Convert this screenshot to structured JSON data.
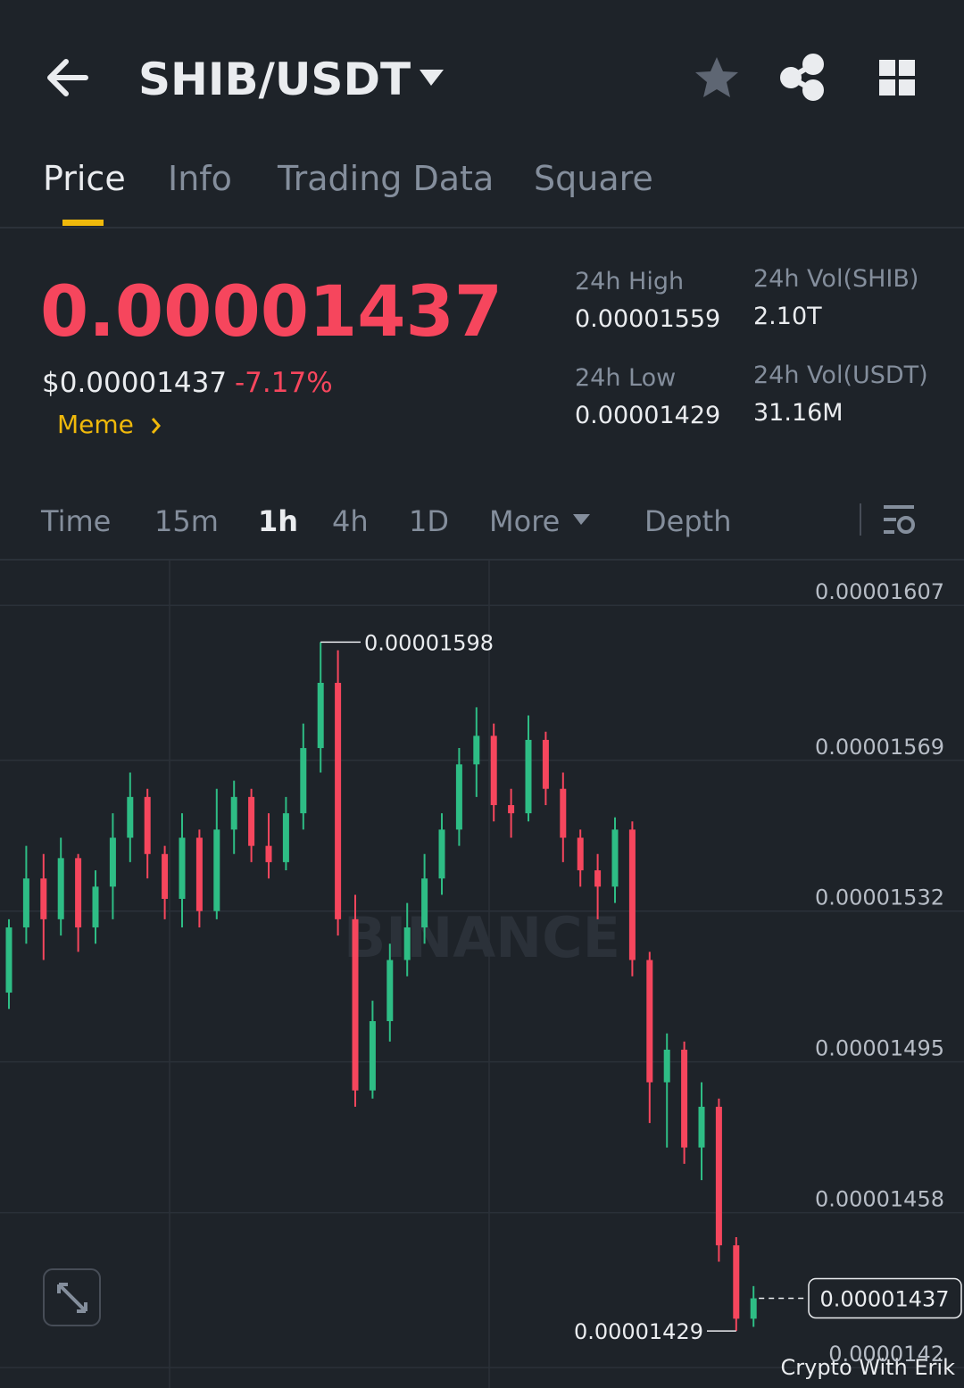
{
  "header": {
    "title": "SHIB/USDT"
  },
  "tabs": [
    "Price",
    "Info",
    "Trading Data",
    "Square"
  ],
  "price": {
    "last": "0.00001437",
    "usd": "$0.00001437",
    "change": "-7.17%",
    "tag": "Meme"
  },
  "stats": [
    {
      "label": "24h High",
      "value": "0.00001559"
    },
    {
      "label": "24h Vol(SHIB)",
      "value": "2.10T"
    },
    {
      "label": "24h Low",
      "value": "0.00001429"
    },
    {
      "label": "24h Vol(USDT)",
      "value": "31.16M"
    }
  ],
  "intervals": [
    "Time",
    "15m",
    "1h",
    "4h",
    "1D",
    "More",
    "Depth"
  ],
  "watermark": "BINANCE",
  "credit": "Crypto With Erik",
  "chart_data": {
    "type": "candlestick",
    "up_color": "#2ebd85",
    "down_color": "#f6465d",
    "open": [
      1.512e-05,
      1.528e-05,
      1.54e-05,
      1.53e-05,
      1.545e-05,
      1.528e-05,
      1.538e-05,
      1.55e-05,
      1.56e-05,
      1.546e-05,
      1.535e-05,
      1.55e-05,
      1.532e-05,
      1.552e-05,
      1.56e-05,
      1.548e-05,
      1.544e-05,
      1.556e-05,
      1.572e-05,
      1.588e-05,
      1.53e-05,
      1.488e-05,
      1.505e-05,
      1.52e-05,
      1.528e-05,
      1.54e-05,
      1.552e-05,
      1.568e-05,
      1.575e-05,
      1.558e-05,
      1.556e-05,
      1.574e-05,
      1.562e-05,
      1.55e-05,
      1.542e-05,
      1.538e-05,
      1.552e-05,
      1.52e-05,
      1.49e-05,
      1.498e-05,
      1.474e-05,
      1.484e-05,
      1.45e-05,
      1.432e-05
    ],
    "high": [
      1.53e-05,
      1.548e-05,
      1.546e-05,
      1.55e-05,
      1.546e-05,
      1.542e-05,
      1.556e-05,
      1.566e-05,
      1.562e-05,
      1.548e-05,
      1.556e-05,
      1.552e-05,
      1.562e-05,
      1.564e-05,
      1.562e-05,
      1.556e-05,
      1.56e-05,
      1.578e-05,
      1.598e-05,
      1.596e-05,
      1.536e-05,
      1.51e-05,
      1.524e-05,
      1.534e-05,
      1.546e-05,
      1.556e-05,
      1.572e-05,
      1.582e-05,
      1.578e-05,
      1.562e-05,
      1.58e-05,
      1.576e-05,
      1.566e-05,
      1.552e-05,
      1.546e-05,
      1.555e-05,
      1.554e-05,
      1.522e-05,
      1.502e-05,
      1.5e-05,
      1.49e-05,
      1.486e-05,
      1.452e-05,
      1.44e-05
    ],
    "low": [
      1.508e-05,
      1.524e-05,
      1.52e-05,
      1.526e-05,
      1.522e-05,
      1.524e-05,
      1.53e-05,
      1.544e-05,
      1.54e-05,
      1.53e-05,
      1.528e-05,
      1.528e-05,
      1.53e-05,
      1.546e-05,
      1.544e-05,
      1.54e-05,
      1.542e-05,
      1.552e-05,
      1.566e-05,
      1.526e-05,
      1.484e-05,
      1.486e-05,
      1.5e-05,
      1.516e-05,
      1.524e-05,
      1.536e-05,
      1.548e-05,
      1.56e-05,
      1.554e-05,
      1.55e-05,
      1.554e-05,
      1.558e-05,
      1.544e-05,
      1.538e-05,
      1.53e-05,
      1.534e-05,
      1.516e-05,
      1.48e-05,
      1.474e-05,
      1.47e-05,
      1.466e-05,
      1.446e-05,
      1.429e-05,
      1.43e-05
    ],
    "close": [
      1.528e-05,
      1.54e-05,
      1.53e-05,
      1.545e-05,
      1.528e-05,
      1.538e-05,
      1.55e-05,
      1.56e-05,
      1.546e-05,
      1.535e-05,
      1.55e-05,
      1.532e-05,
      1.552e-05,
      1.56e-05,
      1.548e-05,
      1.544e-05,
      1.556e-05,
      1.572e-05,
      1.588e-05,
      1.53e-05,
      1.488e-05,
      1.505e-05,
      1.52e-05,
      1.528e-05,
      1.54e-05,
      1.552e-05,
      1.568e-05,
      1.575e-05,
      1.558e-05,
      1.556e-05,
      1.574e-05,
      1.562e-05,
      1.55e-05,
      1.542e-05,
      1.538e-05,
      1.552e-05,
      1.52e-05,
      1.49e-05,
      1.498e-05,
      1.474e-05,
      1.484e-05,
      1.45e-05,
      1.432e-05,
      1.437e-05
    ],
    "ylim": [
      1.415e-05,
      1.618e-05
    ],
    "yticks": [
      1.607e-05,
      1.569e-05,
      1.532e-05,
      1.495e-05,
      1.458e-05,
      1.42e-05
    ],
    "grid": true,
    "annotations": {
      "high": 1.598e-05,
      "low": 1.429e-05,
      "last": 1.437e-05
    }
  }
}
